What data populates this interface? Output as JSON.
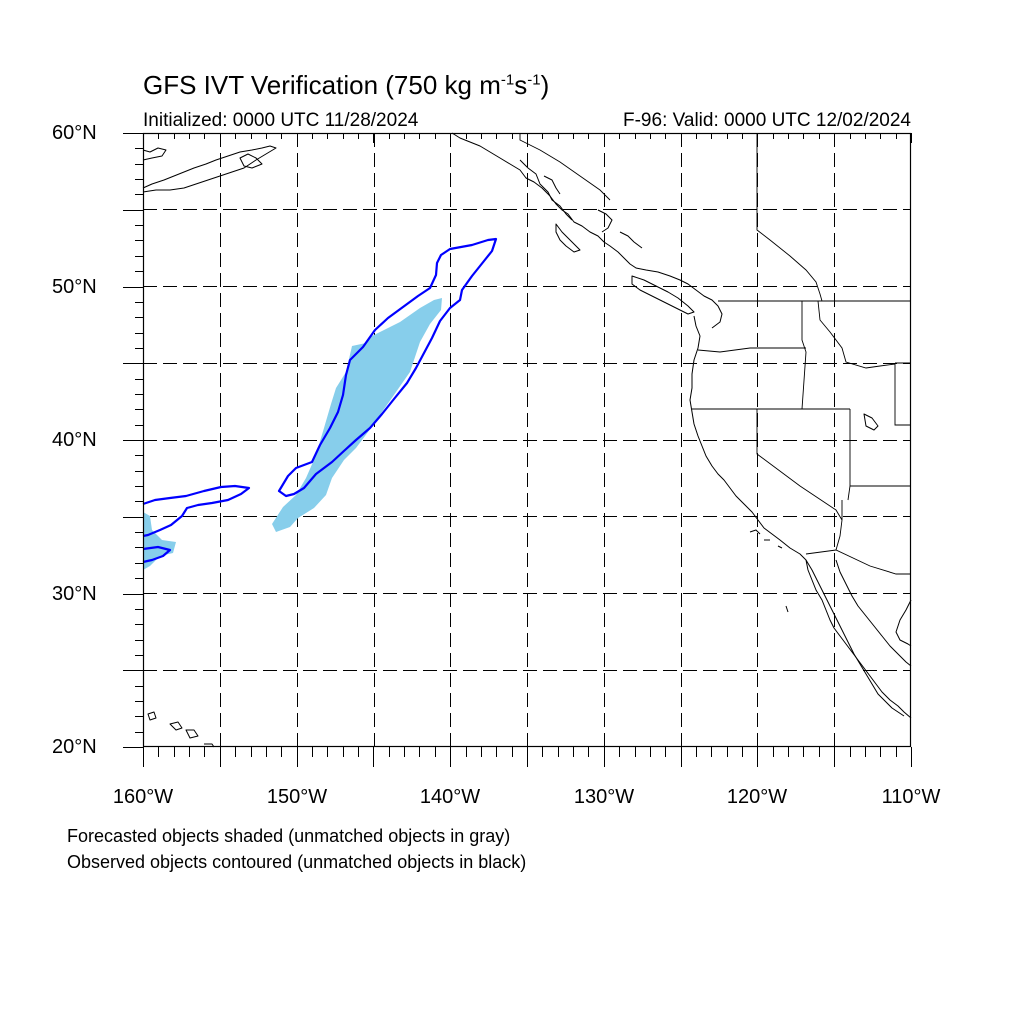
{
  "title": {
    "main": "GFS IVT Verification (750 kg m",
    "sup1": "-1",
    "mid": "s",
    "sup2": "-1",
    "end": ")"
  },
  "subtitle_left": "Initialized: 0000 UTC 11/28/2024",
  "subtitle_right": "F-96: Valid: 0000 UTC 12/02/2024",
  "lat_labels": [
    "60°N",
    "50°N",
    "40°N",
    "30°N",
    "20°N"
  ],
  "lon_labels": [
    "160°W",
    "150°W",
    "140°W",
    "130°W",
    "120°W",
    "110°W"
  ],
  "captions": [
    "Forecasted objects shaded (unmatched objects in gray)",
    "Observed objects contoured (unmatched objects in black)"
  ],
  "colors": {
    "forecast_fill": "#87CEEB",
    "observed_contour": "#0000FF",
    "coastline": "#000000",
    "grid": "#000000"
  },
  "map_extent": {
    "lon_min": -160,
    "lon_max": -110,
    "lat_min": 20,
    "lat_max": 60
  }
}
